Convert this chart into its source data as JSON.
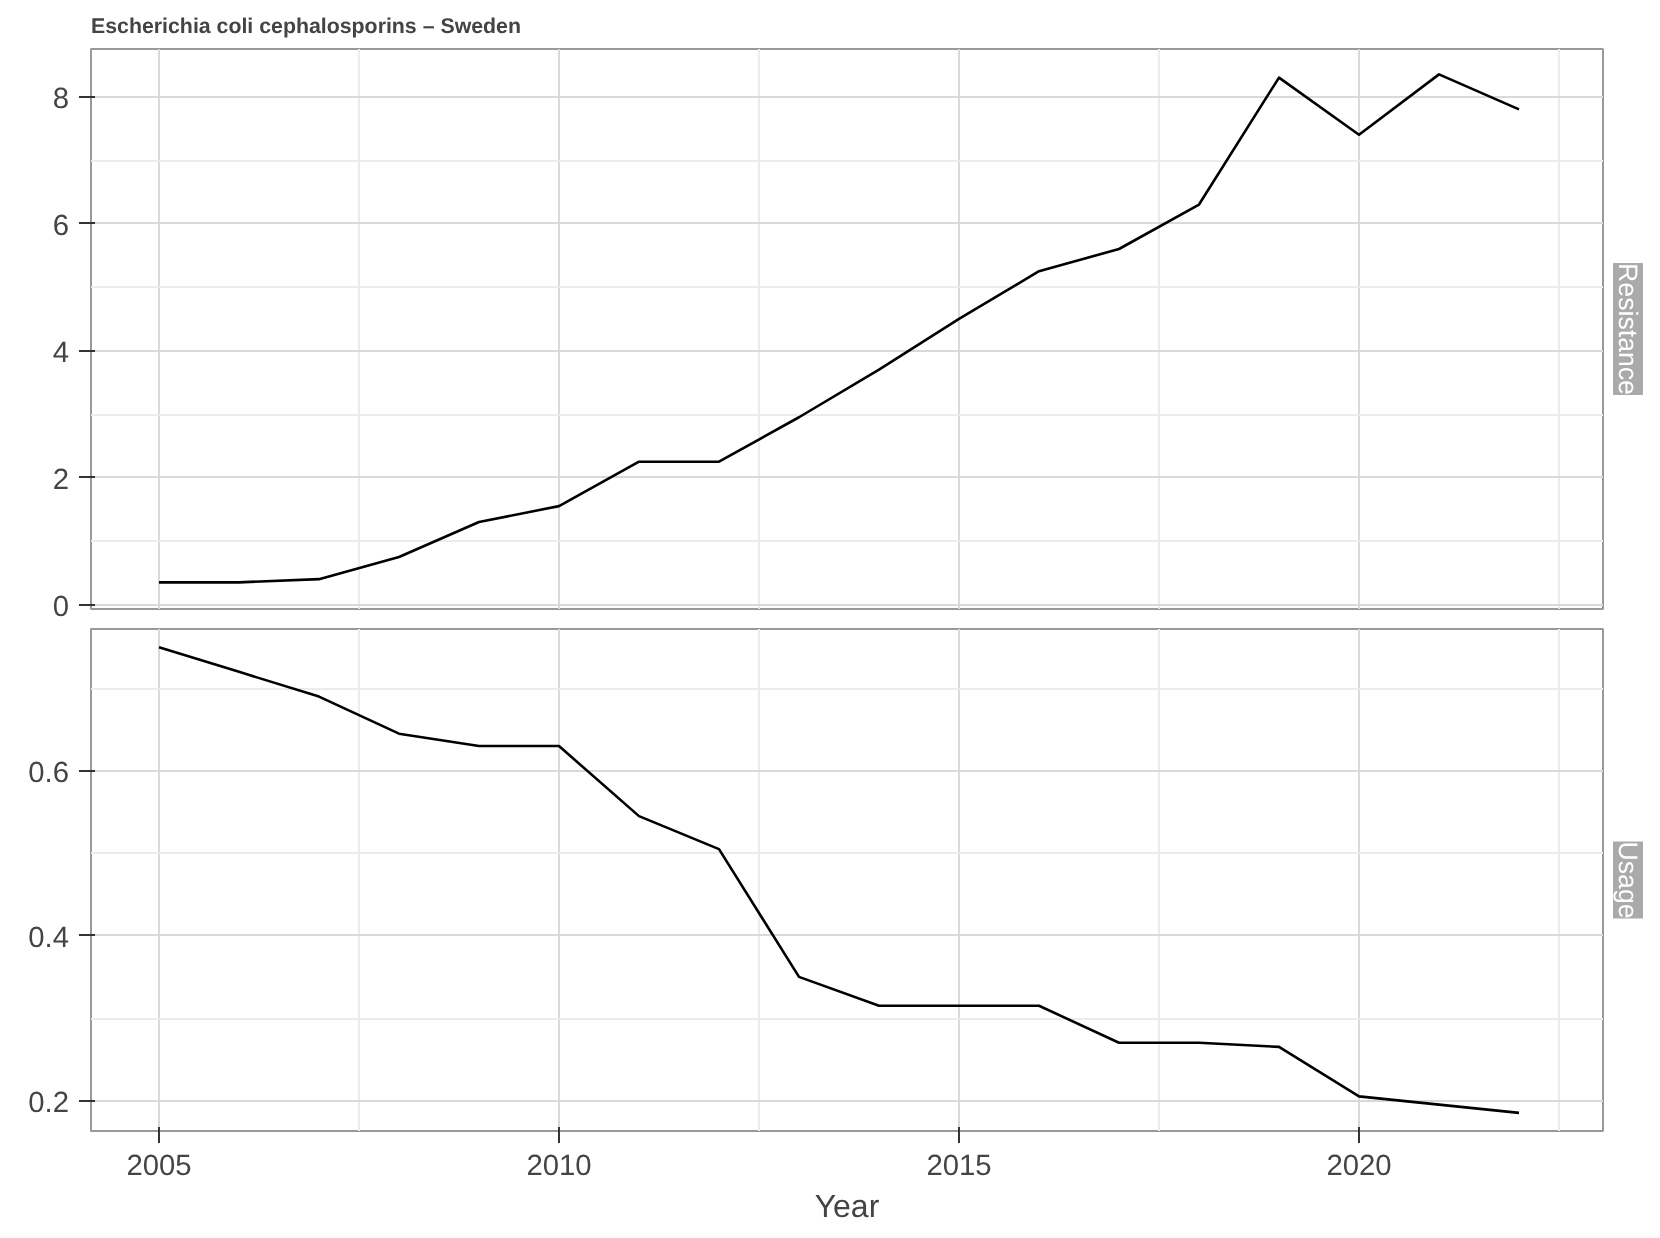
{
  "chart_data": [
    {
      "type": "line",
      "title": "Escherichia coli cephalosporins – Sweden",
      "y2label": "Resistance",
      "x": [
        2005,
        2006,
        2007,
        2008,
        2009,
        2010,
        2011,
        2012,
        2013,
        2014,
        2015,
        2016,
        2017,
        2018,
        2019,
        2020,
        2021,
        2022
      ],
      "series": [
        {
          "color": "#000000",
          "values": [
            0.35,
            0.35,
            0.4,
            0.75,
            1.3,
            1.55,
            2.25,
            2.25,
            2.95,
            3.7,
            4.5,
            5.25,
            5.6,
            6.3,
            8.3,
            7.4,
            8.35,
            7.8
          ]
        }
      ],
      "xlim": [
        2004.15,
        2023.05
      ],
      "xticks": [
        2005,
        2010,
        2015,
        2020
      ],
      "ylim": [
        -0.07,
        8.75
      ],
      "yticks": [
        0,
        2,
        4,
        6,
        8
      ],
      "tick_labels": "y",
      "grid": true
    },
    {
      "type": "line",
      "xlabel": "Year",
      "y2label": "Usage",
      "x": [
        2005,
        2006,
        2007,
        2008,
        2009,
        2010,
        2011,
        2012,
        2013,
        2014,
        2015,
        2016,
        2017,
        2018,
        2019,
        2020,
        2021,
        2022
      ],
      "series": [
        {
          "color": "#000000",
          "values": [
            0.75,
            0.72,
            0.69,
            0.645,
            0.63,
            0.63,
            0.545,
            0.505,
            0.35,
            0.315,
            0.315,
            0.315,
            0.27,
            0.27,
            0.265,
            0.205,
            0.195,
            0.185
          ]
        }
      ],
      "xlim": [
        2004.15,
        2023.05
      ],
      "xticks": [
        2005,
        2010,
        2015,
        2020
      ],
      "ylim": [
        0.163,
        0.772
      ],
      "yticks": [
        0.2,
        0.4,
        0.6
      ],
      "grid": true
    }
  ]
}
